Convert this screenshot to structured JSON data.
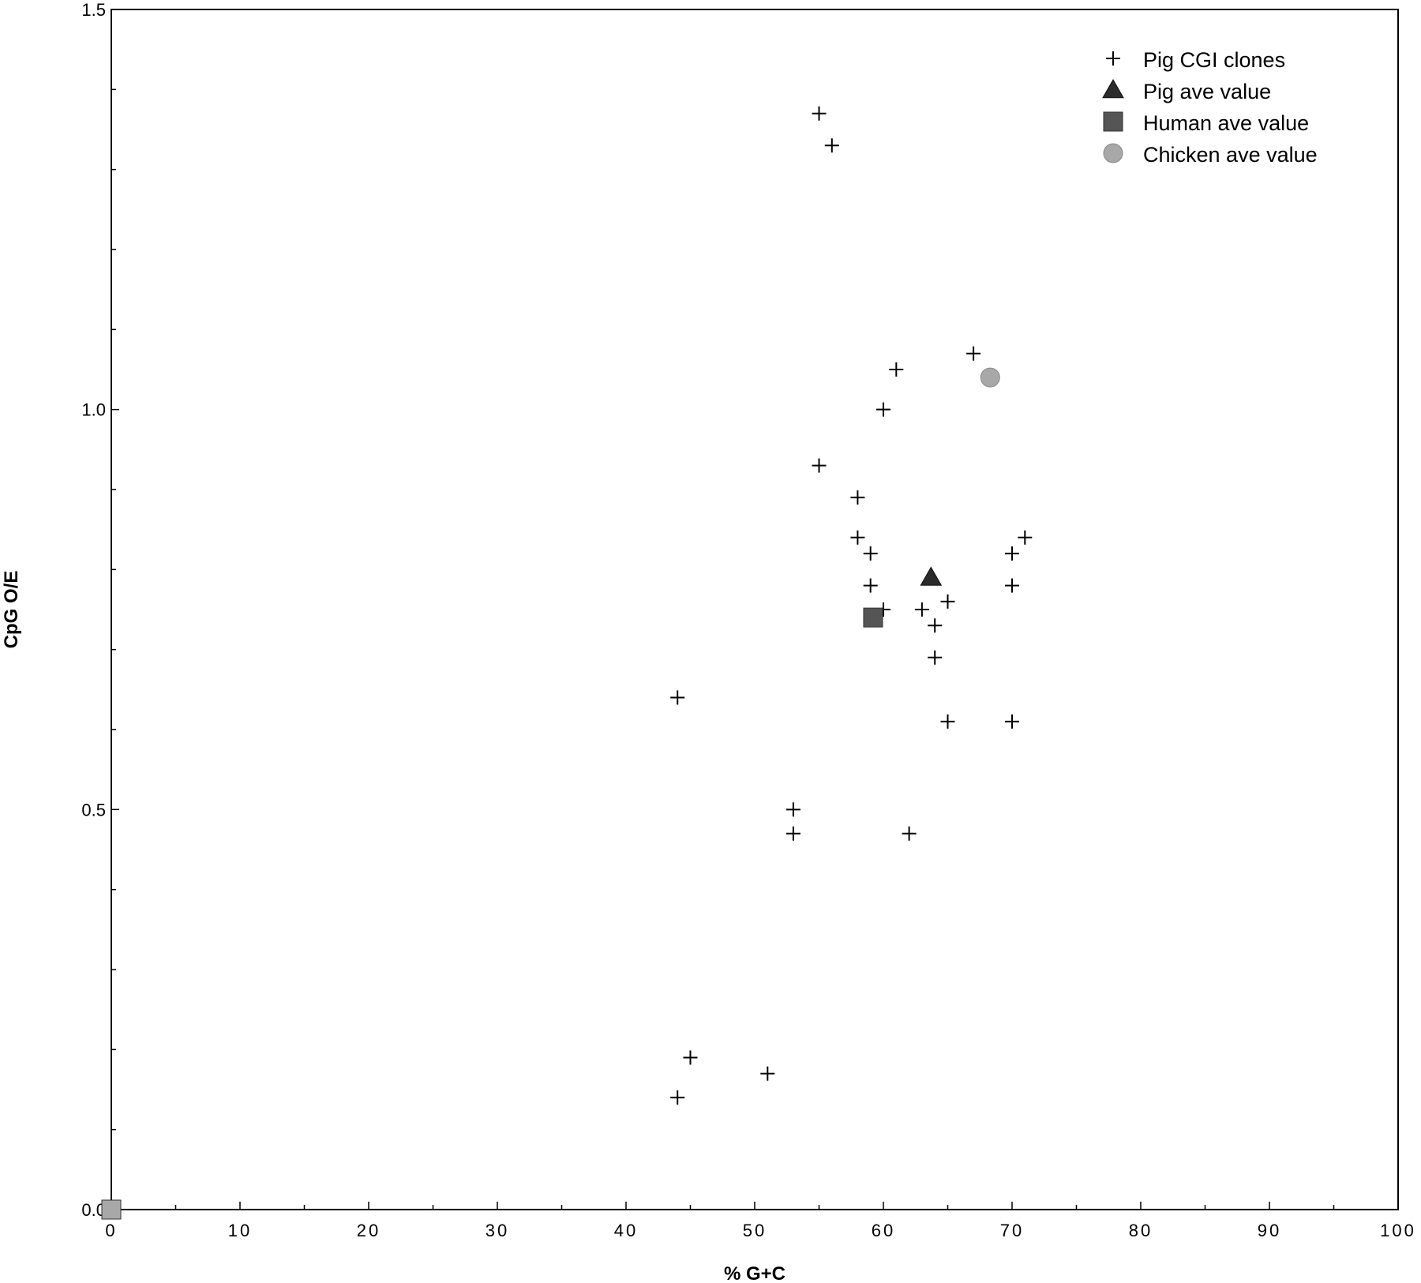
{
  "chart_data": {
    "type": "scatter",
    "xlabel": "% G+C",
    "ylabel": "CpG O/E",
    "xlim": [
      0,
      100
    ],
    "ylim": [
      0,
      1.5
    ],
    "x_ticks": [
      0,
      10,
      20,
      30,
      40,
      50,
      60,
      70,
      80,
      90,
      100
    ],
    "x_tick_labels": [
      "0",
      "10",
      "20",
      "30",
      "40",
      "50",
      "60",
      "70",
      "80",
      "90",
      "100"
    ],
    "y_ticks": [
      0,
      0.5,
      1.0,
      1.5
    ],
    "y_tick_labels": [
      "0.0",
      "0.5",
      "1.0",
      "1.5"
    ],
    "grid": false,
    "legend_position": "top-right",
    "series": [
      {
        "name": "Pig CGI clones",
        "marker": "plus",
        "color": "#000000",
        "points": [
          [
            55,
            1.37
          ],
          [
            56,
            1.33
          ],
          [
            67,
            1.07
          ],
          [
            61,
            1.05
          ],
          [
            60,
            1.0
          ],
          [
            55,
            0.93
          ],
          [
            58,
            0.89
          ],
          [
            58,
            0.84
          ],
          [
            59,
            0.82
          ],
          [
            71,
            0.84
          ],
          [
            70,
            0.82
          ],
          [
            59,
            0.78
          ],
          [
            70,
            0.78
          ],
          [
            60,
            0.75
          ],
          [
            63,
            0.75
          ],
          [
            65,
            0.76
          ],
          [
            64,
            0.73
          ],
          [
            64,
            0.69
          ],
          [
            44,
            0.64
          ],
          [
            65,
            0.61
          ],
          [
            70,
            0.61
          ],
          [
            53,
            0.5
          ],
          [
            53,
            0.47
          ],
          [
            62,
            0.47
          ],
          [
            45,
            0.19
          ],
          [
            51,
            0.17
          ],
          [
            44,
            0.14
          ]
        ]
      },
      {
        "name": "Pig ave value",
        "marker": "triangle",
        "color": "#2b2b2b",
        "points": [
          [
            63.7,
            0.79
          ]
        ]
      },
      {
        "name": "Human ave value",
        "marker": "square",
        "color": "#555555",
        "points": [
          [
            59.2,
            0.74
          ]
        ]
      },
      {
        "name": "Chicken ave value",
        "marker": "circle",
        "color": "#a8a8a8",
        "points": [
          [
            68.3,
            1.04
          ]
        ]
      },
      {
        "name": "",
        "marker": "square",
        "color": "#a8a8a8",
        "points": [
          [
            0,
            0
          ]
        ]
      }
    ]
  }
}
